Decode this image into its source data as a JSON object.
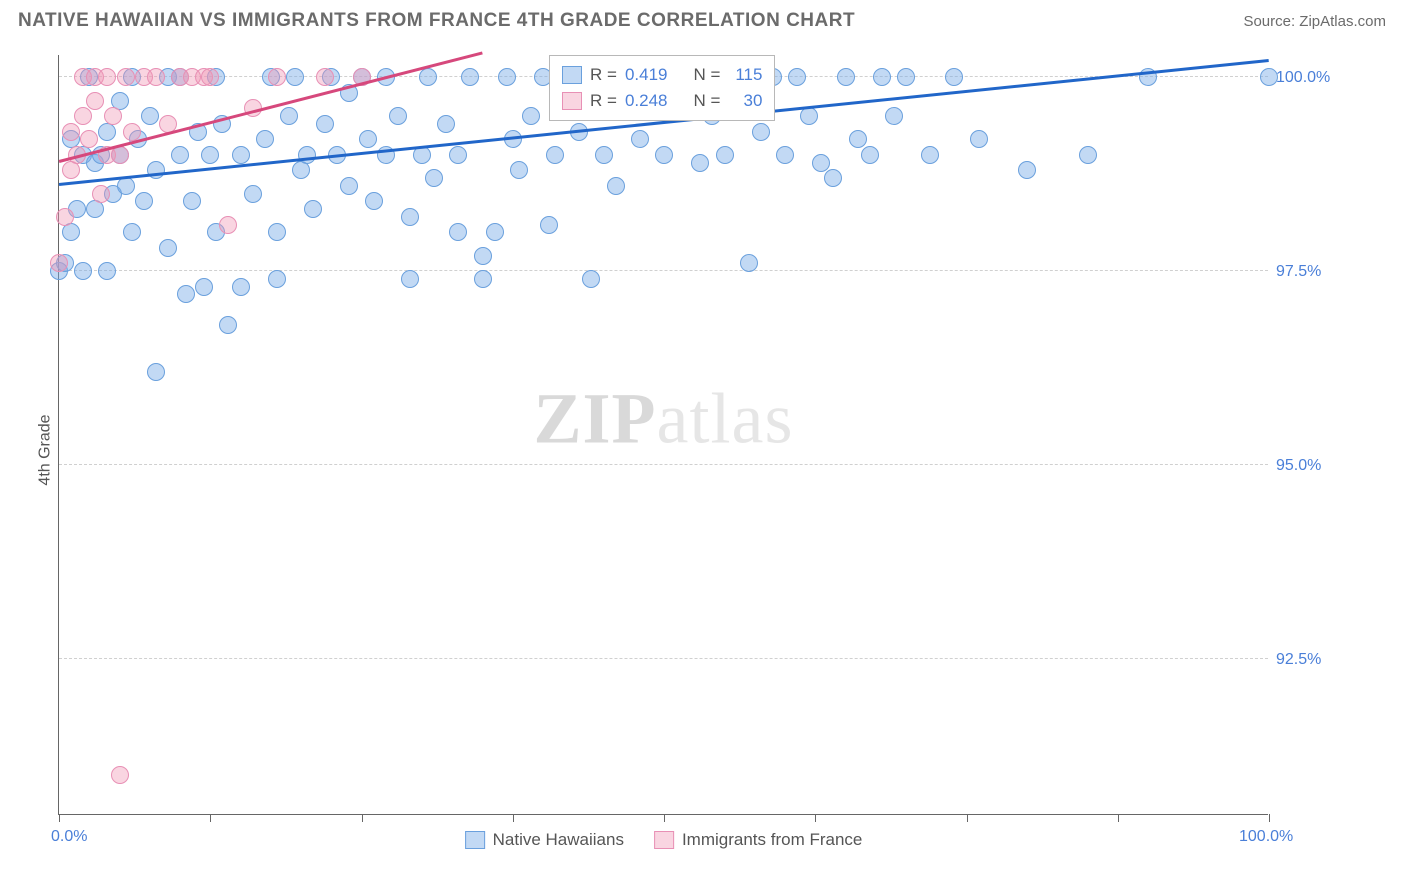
{
  "header": {
    "title": "NATIVE HAWAIIAN VS IMMIGRANTS FROM FRANCE 4TH GRADE CORRELATION CHART",
    "source": "Source: ZipAtlas.com"
  },
  "watermark": {
    "zip": "ZIP",
    "atlas": "atlas"
  },
  "chart": {
    "type": "scatter",
    "ylabel": "4th Grade",
    "xlim": [
      0,
      100
    ],
    "ylim": [
      90.5,
      100.3
    ],
    "x_ticks": [
      0,
      12.5,
      25,
      37.5,
      50,
      62.5,
      75,
      87.5,
      100
    ],
    "x_tick_labels": {
      "0": "0.0%",
      "100": "100.0%"
    },
    "y_gridlines": [
      92.5,
      95.0,
      97.5,
      100.0
    ],
    "y_tick_labels": {
      "92.5": "92.5%",
      "95.0": "95.0%",
      "97.5": "97.5%",
      "100.0": "100.0%"
    },
    "background_color": "#ffffff",
    "grid_color": "#d0d0d0",
    "axis_color": "#666666",
    "series": [
      {
        "name": "Native Hawaiians",
        "fill": "rgba(120,170,230,0.45)",
        "stroke": "#6aa0dd",
        "trend_color": "#2166c9",
        "marker_radius": 9,
        "r_label": "R =",
        "r_value": "0.419",
        "n_label": "N =",
        "n_value": "115",
        "trend": {
          "x1": 0,
          "y1": 98.6,
          "x2": 100,
          "y2": 100.2
        },
        "points": [
          [
            0,
            97.5
          ],
          [
            0.5,
            97.6
          ],
          [
            1,
            98.0
          ],
          [
            1,
            99.2
          ],
          [
            1.5,
            98.3
          ],
          [
            2,
            97.5
          ],
          [
            2,
            99.0
          ],
          [
            2.5,
            100.0
          ],
          [
            3,
            98.3
          ],
          [
            3,
            98.9
          ],
          [
            3.5,
            99.0
          ],
          [
            4,
            97.5
          ],
          [
            4,
            99.3
          ],
          [
            4.5,
            98.5
          ],
          [
            5,
            99.0
          ],
          [
            5,
            99.7
          ],
          [
            5.5,
            98.6
          ],
          [
            6,
            98.0
          ],
          [
            6,
            100.0
          ],
          [
            6.5,
            99.2
          ],
          [
            7,
            98.4
          ],
          [
            7.5,
            99.5
          ],
          [
            8,
            96.2
          ],
          [
            8,
            98.8
          ],
          [
            9,
            100.0
          ],
          [
            9,
            97.8
          ],
          [
            10,
            99.0
          ],
          [
            10,
            100.0
          ],
          [
            10.5,
            97.2
          ],
          [
            11,
            98.4
          ],
          [
            11.5,
            99.3
          ],
          [
            12,
            97.3
          ],
          [
            12.5,
            99.0
          ],
          [
            13,
            98.0
          ],
          [
            13,
            100.0
          ],
          [
            13.5,
            99.4
          ],
          [
            14,
            96.8
          ],
          [
            15,
            99.0
          ],
          [
            15,
            97.3
          ],
          [
            16,
            98.5
          ],
          [
            17,
            99.2
          ],
          [
            17.5,
            100.0
          ],
          [
            18,
            98.0
          ],
          [
            18,
            97.4
          ],
          [
            19,
            99.5
          ],
          [
            19.5,
            100.0
          ],
          [
            20,
            98.8
          ],
          [
            20.5,
            99.0
          ],
          [
            21,
            98.3
          ],
          [
            22,
            99.4
          ],
          [
            22.5,
            100.0
          ],
          [
            23,
            99.0
          ],
          [
            24,
            98.6
          ],
          [
            24,
            99.8
          ],
          [
            25,
            100.0
          ],
          [
            25.5,
            99.2
          ],
          [
            26,
            98.4
          ],
          [
            27,
            99.0
          ],
          [
            27,
            100.0
          ],
          [
            28,
            99.5
          ],
          [
            29,
            98.2
          ],
          [
            29,
            97.4
          ],
          [
            30,
            99.0
          ],
          [
            30.5,
            100.0
          ],
          [
            31,
            98.7
          ],
          [
            32,
            99.4
          ],
          [
            33,
            98.0
          ],
          [
            33,
            99.0
          ],
          [
            34,
            100.0
          ],
          [
            35,
            97.7
          ],
          [
            35,
            97.4
          ],
          [
            36,
            98.0
          ],
          [
            37,
            100.0
          ],
          [
            37.5,
            99.2
          ],
          [
            38,
            98.8
          ],
          [
            39,
            99.5
          ],
          [
            40,
            100.0
          ],
          [
            40.5,
            98.1
          ],
          [
            41,
            99.0
          ],
          [
            42,
            100.0
          ],
          [
            43,
            99.3
          ],
          [
            44,
            100.0
          ],
          [
            44,
            97.4
          ],
          [
            45,
            99.0
          ],
          [
            46,
            98.6
          ],
          [
            47,
            100.0
          ],
          [
            48,
            99.2
          ],
          [
            50,
            100.0
          ],
          [
            50,
            99.0
          ],
          [
            52,
            100.0
          ],
          [
            53,
            98.9
          ],
          [
            54,
            99.5
          ],
          [
            55,
            99.0
          ],
          [
            56,
            100.0
          ],
          [
            57,
            97.6
          ],
          [
            58,
            99.3
          ],
          [
            59,
            100.0
          ],
          [
            60,
            99.0
          ],
          [
            61,
            100.0
          ],
          [
            62,
            99.5
          ],
          [
            63,
            98.9
          ],
          [
            64,
            98.7
          ],
          [
            65,
            100.0
          ],
          [
            66,
            99.2
          ],
          [
            67,
            99.0
          ],
          [
            68,
            100.0
          ],
          [
            69,
            99.5
          ],
          [
            70,
            100.0
          ],
          [
            72,
            99.0
          ],
          [
            74,
            100.0
          ],
          [
            76,
            99.2
          ],
          [
            80,
            98.8
          ],
          [
            85,
            99.0
          ],
          [
            90,
            100.0
          ],
          [
            100,
            100.0
          ]
        ]
      },
      {
        "name": "Immigrants from France",
        "fill": "rgba(240,150,180,0.40)",
        "stroke": "#e890b5",
        "trend_color": "#d6487c",
        "marker_radius": 9,
        "r_label": "R =",
        "r_value": "0.248",
        "n_label": "N =",
        "n_value": "30",
        "trend": {
          "x1": 0,
          "y1": 98.9,
          "x2": 35,
          "y2": 100.3
        },
        "points": [
          [
            0,
            97.6
          ],
          [
            0.5,
            98.2
          ],
          [
            1,
            98.8
          ],
          [
            1,
            99.3
          ],
          [
            1.5,
            99.0
          ],
          [
            2,
            99.5
          ],
          [
            2,
            100.0
          ],
          [
            2.5,
            99.2
          ],
          [
            3,
            99.7
          ],
          [
            3,
            100.0
          ],
          [
            3.5,
            98.5
          ],
          [
            4,
            99.0
          ],
          [
            4,
            100.0
          ],
          [
            4.5,
            99.5
          ],
          [
            5,
            99.0
          ],
          [
            5,
            91.0
          ],
          [
            5.5,
            100.0
          ],
          [
            6,
            99.3
          ],
          [
            7,
            100.0
          ],
          [
            8,
            100.0
          ],
          [
            9,
            99.4
          ],
          [
            10,
            100.0
          ],
          [
            11,
            100.0
          ],
          [
            12,
            100.0
          ],
          [
            12.5,
            100.0
          ],
          [
            14,
            98.1
          ],
          [
            16,
            99.6
          ],
          [
            18,
            100.0
          ],
          [
            22,
            100.0
          ],
          [
            25,
            100.0
          ]
        ]
      }
    ],
    "bottom_legend": [
      {
        "label": "Native Hawaiians",
        "fill": "rgba(120,170,230,0.45)",
        "stroke": "#6aa0dd"
      },
      {
        "label": "Immigrants from France",
        "fill": "rgba(240,150,180,0.40)",
        "stroke": "#e890b5"
      }
    ]
  }
}
